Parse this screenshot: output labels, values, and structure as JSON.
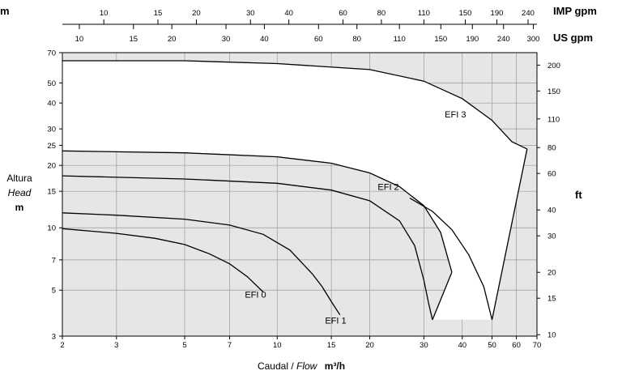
{
  "corner_label": "m",
  "chart_data": {
    "type": "line",
    "title": "",
    "x_scale": "log",
    "y_scale": "log",
    "xlim": [
      2,
      70
    ],
    "ylim": [
      3,
      70
    ],
    "grid": true,
    "background": "#e6e6e6",
    "x_ticks": [
      2,
      3,
      5,
      7,
      10,
      15,
      20,
      30,
      40,
      50,
      60,
      70
    ],
    "y_ticks": [
      3,
      5,
      7,
      10,
      15,
      20,
      25,
      30,
      40,
      50,
      70
    ],
    "x_axis": {
      "prefix": "Caudal / ",
      "italic": "Flow",
      "unit": "m³/h"
    },
    "y_axis": {
      "line1": "Altura",
      "line2_italic": "Head",
      "line3": "m"
    },
    "right_axis": {
      "unit": "ft",
      "ticks": [
        10,
        15,
        20,
        30,
        40,
        60,
        80,
        110,
        150,
        200
      ]
    },
    "top_axis_us": {
      "unit": "US gpm",
      "ticks": [
        10,
        15,
        20,
        30,
        40,
        60,
        80,
        110,
        150,
        190,
        240,
        300
      ]
    },
    "top_axis_imp": {
      "unit": "IMP gpm",
      "ticks": [
        10,
        15,
        20,
        30,
        40,
        60,
        80,
        110,
        150,
        190,
        240
      ]
    },
    "series": [
      {
        "name": "EFI 0",
        "label_at": [
          8.5,
          4.6
        ],
        "points": [
          [
            2,
            9.9
          ],
          [
            3,
            9.4
          ],
          [
            4,
            8.9
          ],
          [
            5,
            8.3
          ],
          [
            6,
            7.5
          ],
          [
            7,
            6.7
          ],
          [
            8,
            5.8
          ],
          [
            9,
            4.9
          ]
        ]
      },
      {
        "name": "EFI 1",
        "label_at": [
          15.5,
          3.45
        ],
        "points": [
          [
            2,
            11.8
          ],
          [
            3,
            11.5
          ],
          [
            5,
            11.0
          ],
          [
            7,
            10.3
          ],
          [
            9,
            9.3
          ],
          [
            11,
            7.8
          ],
          [
            13,
            6.0
          ],
          [
            14,
            5.2
          ],
          [
            15,
            4.4
          ],
          [
            16,
            3.8
          ]
        ]
      },
      {
        "name": "EFI 2",
        "label_at": [
          23,
          15.2
        ],
        "points": [
          [
            2,
            17.8
          ],
          [
            5,
            17.2
          ],
          [
            10,
            16.4
          ],
          [
            15,
            15.2
          ],
          [
            20,
            13.5
          ],
          [
            25,
            10.8
          ],
          [
            28,
            8.2
          ],
          [
            30,
            5.6
          ],
          [
            31,
            4.4
          ]
        ]
      },
      {
        "name": "EFI 3",
        "label_at": [
          38,
          34
        ],
        "points": [
          [
            2,
            64
          ],
          [
            5,
            64
          ],
          [
            10,
            62
          ],
          [
            20,
            58
          ],
          [
            30,
            51
          ],
          [
            40,
            42
          ],
          [
            50,
            33
          ],
          [
            58,
            26
          ],
          [
            65,
            24
          ]
        ]
      },
      {
        "name": "",
        "points": [
          [
            2,
            23.5
          ],
          [
            5,
            23
          ],
          [
            10,
            22
          ],
          [
            15,
            20.5
          ],
          [
            20,
            18.4
          ],
          [
            25,
            15.8
          ],
          [
            30,
            12.8
          ],
          [
            34,
            9.5
          ],
          [
            37,
            6.1
          ]
        ]
      },
      {
        "name": "",
        "points": [
          [
            27,
            13.9
          ],
          [
            32,
            12.0
          ],
          [
            37,
            9.8
          ],
          [
            42,
            7.4
          ],
          [
            47,
            5.2
          ],
          [
            50,
            3.6
          ]
        ]
      }
    ],
    "closing_lines": [
      [
        [
          32,
          3.6
        ],
        [
          37,
          6.1
        ]
      ],
      [
        [
          31,
          4.4
        ],
        [
          32,
          3.6
        ]
      ],
      [
        [
          50,
          3.6
        ],
        [
          65,
          24
        ]
      ]
    ]
  }
}
